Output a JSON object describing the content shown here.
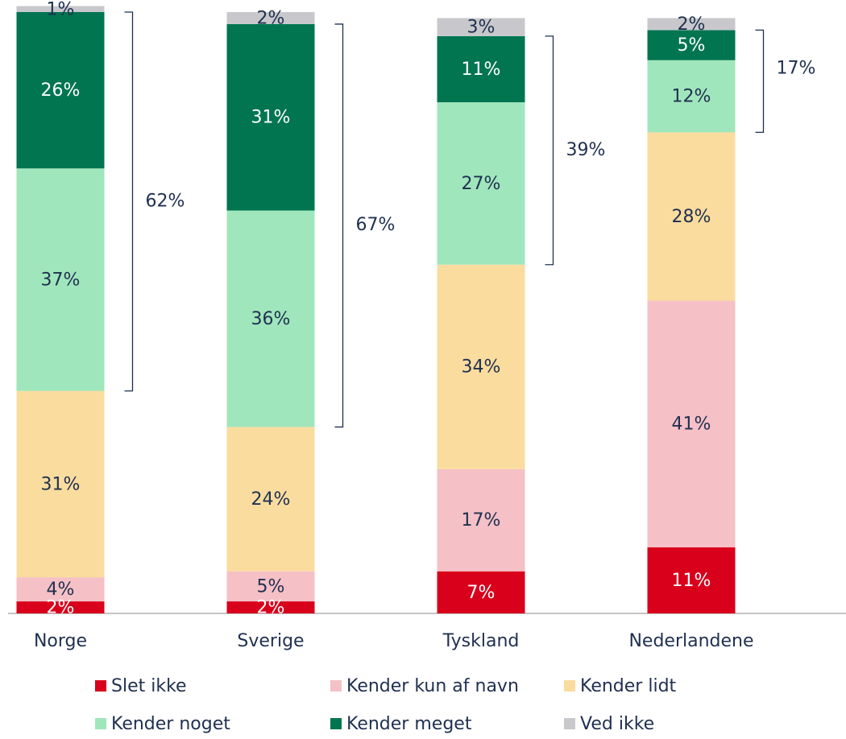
{
  "chart_data": {
    "type": "stacked_bar",
    "categories": [
      "Norge",
      "Sverige",
      "Tyskland",
      "Nederlandene"
    ],
    "ylim": [
      0,
      100
    ],
    "series": [
      {
        "name": "Slet ikke",
        "color": "#d9001b",
        "label_color": "#ffffff",
        "values": [
          2,
          2,
          7,
          11
        ],
        "value_labels": [
          "2%",
          "2%",
          "7%",
          "11%"
        ]
      },
      {
        "name": "Kender kun af navn",
        "color": "#f5c0c6",
        "label_color": "#1f3050",
        "values": [
          4,
          5,
          17,
          41
        ],
        "value_labels": [
          "4%",
          "5%",
          "17%",
          "41%"
        ]
      },
      {
        "name": "Kender lidt",
        "color": "#fadc9e",
        "label_color": "#1f3050",
        "values": [
          31,
          24,
          34,
          28
        ],
        "value_labels": [
          "31%",
          "24%",
          "34%",
          "28%"
        ]
      },
      {
        "name": "Kender noget",
        "color": "#a0e6bc",
        "label_color": "#1f3050",
        "values": [
          37,
          36,
          27,
          12
        ],
        "value_labels": [
          "37%",
          "36%",
          "27%",
          "12%"
        ]
      },
      {
        "name": "Kender meget",
        "color": "#007550",
        "label_color": "#ffffff",
        "values": [
          26,
          31,
          11,
          5
        ],
        "value_labels": [
          "26%",
          "31%",
          "11%",
          "5%"
        ]
      },
      {
        "name": "Ved ikke",
        "color": "#c8c8cc",
        "label_color": "#1f3050",
        "values": [
          1,
          2,
          3,
          2
        ],
        "value_labels": [
          "1%",
          "2%",
          "3%",
          "2%"
        ]
      }
    ],
    "brackets": {
      "values": [
        62,
        67,
        39,
        17
      ],
      "value_labels": [
        "62%",
        "67%",
        "39%",
        "17%"
      ]
    }
  }
}
